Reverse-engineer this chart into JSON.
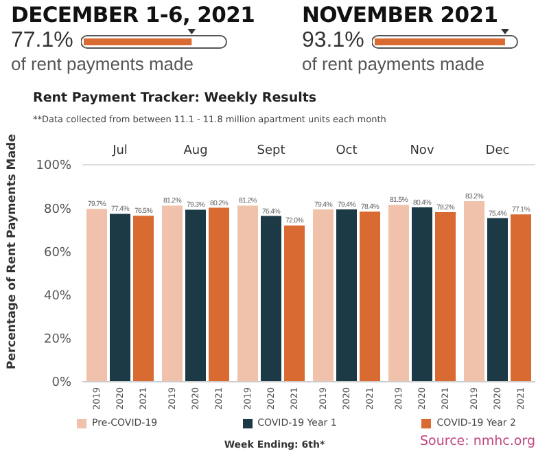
{
  "chart_data": {
    "type": "bar",
    "title": "Rent Payment Tracker: Weekly Results",
    "subtitle": "**Data collected from between 11.1 - 11.8 million apartment units each month",
    "ylabel": "Percentage of Rent Payments Made",
    "categories": [
      "Jul",
      "Aug",
      "Sept",
      "Oct",
      "Nov",
      "Dec"
    ],
    "series": [
      {
        "name": "Pre-COVID-19",
        "color": "#f0c2ab",
        "values": [
          79.7,
          81.2,
          81.2,
          79.4,
          81.5,
          83.2
        ],
        "value_labels": [
          "79.7%",
          "81.2%",
          "81.2%",
          "79.4%",
          "81.5%",
          "83.2%"
        ]
      },
      {
        "name": "COVID-19 Year 1",
        "color": "#1b3a46",
        "values": [
          77.4,
          79.3,
          76.4,
          79.4,
          80.4,
          75.4
        ],
        "value_labels": [
          "77.4%",
          "79.3%",
          "76.4%",
          "79.4%",
          "80.4%",
          "75.4%"
        ]
      },
      {
        "name": "COVID-19 Year 2",
        "color": "#d96a32",
        "values": [
          76.5,
          80.2,
          72.0,
          78.4,
          78.2,
          77.1
        ],
        "value_labels": [
          "76.5%",
          "80.2%",
          "72.0%",
          "78.4%",
          "78.2%",
          "77.1%"
        ]
      }
    ],
    "ylim": [
      0,
      100
    ],
    "yticks": [
      {
        "value": 0,
        "label": "0%"
      },
      {
        "value": 20,
        "label": "20%"
      },
      {
        "value": 40,
        "label": "40%"
      },
      {
        "value": 60,
        "label": "60%"
      },
      {
        "value": 80,
        "label": "80%"
      },
      {
        "value": 100,
        "label": "100%"
      }
    ],
    "legend": "bottom",
    "annotations": [
      "DECEMBER 1-6, 2021",
      "77.1%",
      "of rent payments made",
      "NOVEMBER 2021",
      "93.1%",
      "of rent payments made",
      "Source: nmhc.org",
      "2019",
      "2020",
      "2021",
      "2019",
      "2020",
      "2021",
      "2019",
      "2020",
      "2021",
      "2019",
      "2020",
      "2021",
      "2019",
      "2020",
      "2021",
      "2019",
      "2020",
      "2021",
      "Week Ending: 6th*"
    ]
  }
}
